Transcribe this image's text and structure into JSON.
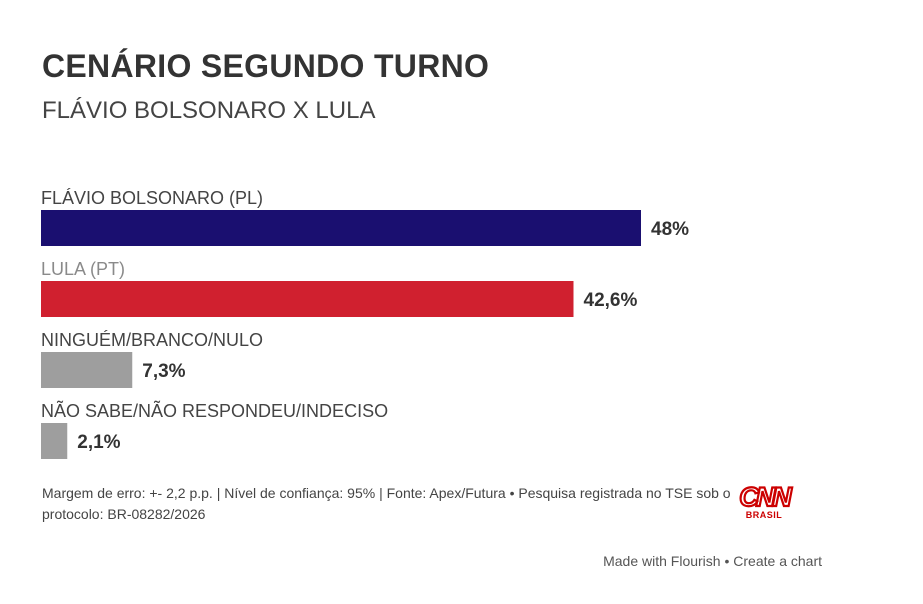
{
  "chart_data": {
    "type": "bar",
    "orientation": "horizontal",
    "title": "CENÁRIO SEGUNDO TURNO",
    "subtitle": "FLÁVIO BOLSONARO X LULA",
    "categories": [
      "FLÁVIO BOLSONARO (PL)",
      "LULA (PT)",
      "NINGUÉM/BRANCO/NULO",
      "NÃO SABE/NÃO RESPONDEU/INDECISO"
    ],
    "values": [
      48,
      42.6,
      7.3,
      2.1
    ],
    "value_labels": [
      "48%",
      "42,6%",
      "7,3%",
      "2,1%"
    ],
    "colors": [
      "#1a0f70",
      "#d0202f",
      "#9e9e9e",
      "#9e9e9e"
    ],
    "xlim": [
      0,
      100
    ],
    "grid": false,
    "legend": "none"
  },
  "footer": {
    "note": "Margem de erro: +- 2,2 p.p. | Nível de confiança: 95% | Fonte: Apex/Futura • Pesquisa registrada no TSE sob o protocolo: BR-08282/2026",
    "logo_text": "CNN",
    "logo_sub": "BRASIL",
    "credit_made": "Made with Flourish",
    "credit_separator": " • ",
    "credit_create": "Create a chart"
  }
}
